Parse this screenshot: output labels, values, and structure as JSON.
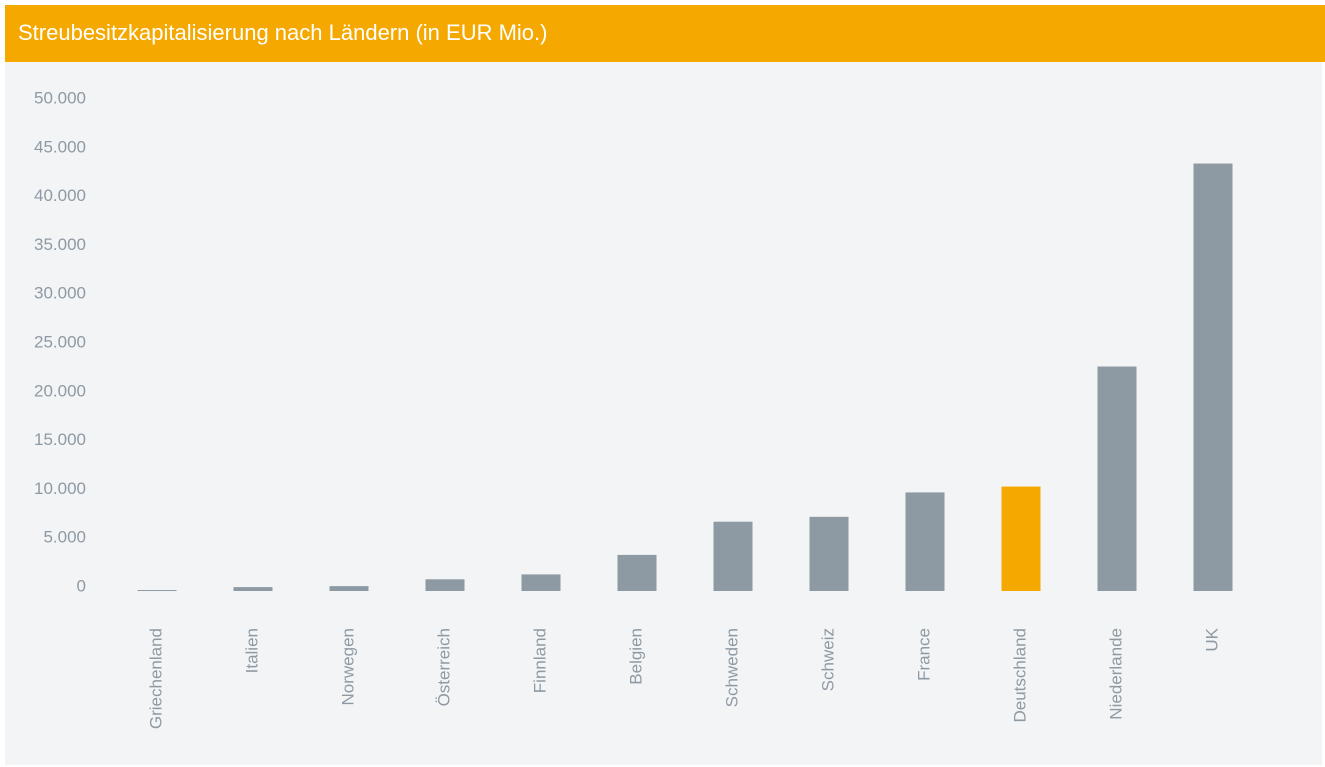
{
  "chart_data": {
    "type": "bar",
    "title": "Streubesitzkapitalisierung nach Ländern (in EUR Mio.)",
    "categories": [
      "Griechenland",
      "Italien",
      "Norwegen",
      "Österreich",
      "Finnland",
      "Belgien",
      "Schweden",
      "Schweiz",
      "France",
      "Deutschland",
      "Niederlande",
      "UK"
    ],
    "values": [
      100,
      400,
      500,
      1200,
      1700,
      3700,
      7100,
      7600,
      10100,
      10700,
      23000,
      43800
    ],
    "colors": [
      "#8e9aa3",
      "#8e9aa3",
      "#8e9aa3",
      "#8e9aa3",
      "#8e9aa3",
      "#8e9aa3",
      "#8e9aa3",
      "#8e9aa3",
      "#8e9aa3",
      "#f5a800",
      "#8e9aa3",
      "#8e9aa3"
    ],
    "ylim": [
      0,
      50000
    ],
    "yticks": [
      0,
      {
        "value": 5000,
        "label": "5.000"
      },
      {
        "value": 10000,
        "label": "10.000"
      },
      {
        "value": 15000,
        "label": "15.000"
      },
      {
        "value": 20000,
        "label": "20.000"
      },
      {
        "value": 25000,
        "label": "25.000"
      },
      {
        "value": 30000,
        "label": "30.000"
      },
      {
        "value": 35000,
        "label": "35.000"
      },
      {
        "value": 40000,
        "label": "40.000"
      },
      {
        "value": 45000,
        "label": "45.000"
      },
      {
        "value": 50000,
        "label": "50.000"
      }
    ],
    "grid": false
  }
}
